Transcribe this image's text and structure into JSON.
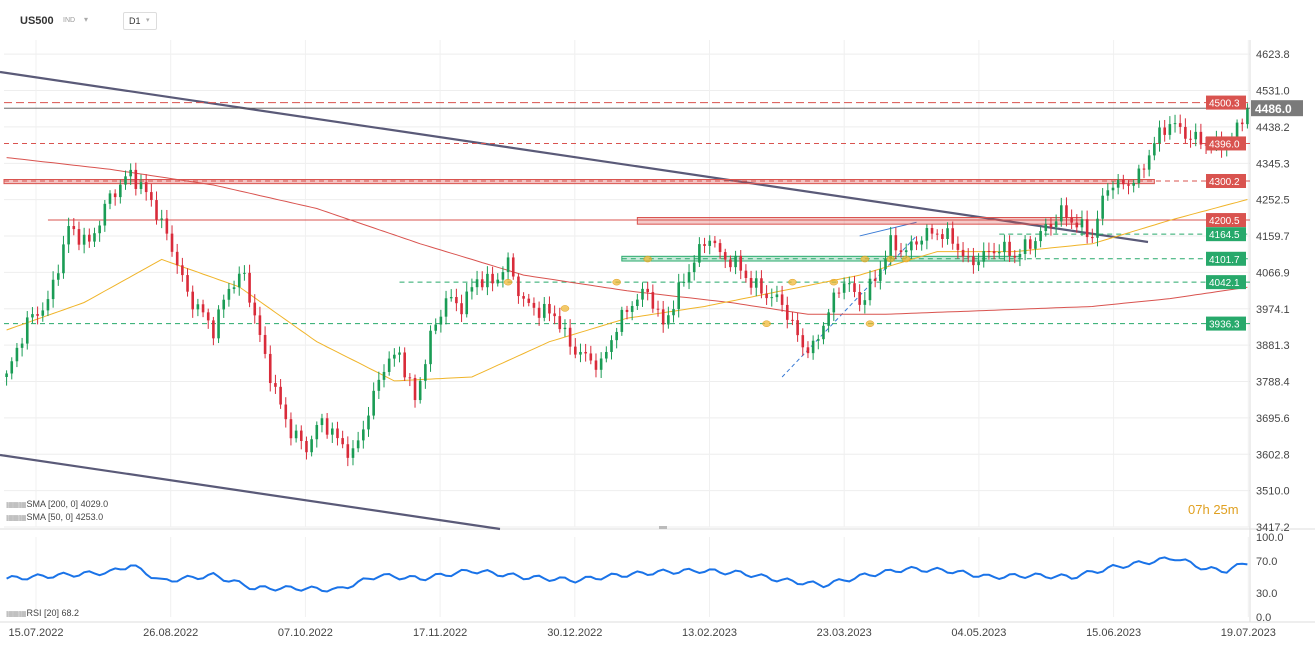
{
  "header": {
    "symbol": "US500",
    "instrument_type": "IND",
    "timeframe": "D1",
    "caret": "▾"
  },
  "countdown": {
    "hours": "07h",
    "minutes": "25m"
  },
  "indicators": {
    "sma200": {
      "label": "SMA [200, 0]",
      "value": "4029.0",
      "color": "#d9534f"
    },
    "sma50": {
      "label": "SMA [50, 0]",
      "value": "4253.0",
      "color": "#f0b429"
    },
    "rsi": {
      "label": "RSI [20]",
      "value": "68.2",
      "color": "#1a73e8"
    }
  },
  "colors": {
    "bull": "#1a9c55",
    "bear": "#d92b3a",
    "resistance": "#d9534f",
    "support": "#27a96b",
    "trendline": "#5a5a78"
  },
  "current_price": {
    "value": "4486.0",
    "color": "#7a7a7a"
  },
  "chart_data": {
    "type": "candlestick",
    "ylim": [
      3417.2,
      4660
    ],
    "y_ticks": [
      "4623.8",
      "4531.0",
      "4438.2",
      "4345.3",
      "4252.5",
      "4159.7",
      "4066.9",
      "3974.1",
      "3881.3",
      "3788.4",
      "3695.6",
      "3602.8",
      "3510.0",
      "3417.2"
    ],
    "x_ticks": [
      "15.07.2022",
      "26.08.2022",
      "07.10.2022",
      "17.11.2022",
      "30.12.2022",
      "13.02.2023",
      "23.03.2023",
      "04.05.2023",
      "15.06.2023",
      "19.07.2023"
    ],
    "levels": [
      {
        "label": "4500.3",
        "value": 4500.3,
        "kind": "resistance"
      },
      {
        "label": "4396.0",
        "value": 4396.0,
        "kind": "resistance"
      },
      {
        "label": "4300.2",
        "value": 4300.2,
        "kind": "resistance"
      },
      {
        "label": "4200.5",
        "value": 4200.5,
        "kind": "resistance"
      },
      {
        "label": "4164.5",
        "value": 4164.5,
        "kind": "support"
      },
      {
        "label": "4101.7",
        "value": 4101.7,
        "kind": "support"
      },
      {
        "label": "4042.1",
        "value": 4042.1,
        "kind": "support"
      },
      {
        "label": "3936.3",
        "value": 3936.3,
        "kind": "support"
      }
    ],
    "price_path": [
      [
        0,
        3800
      ],
      [
        4,
        3940
      ],
      [
        8,
        3990
      ],
      [
        12,
        4180
      ],
      [
        16,
        4140
      ],
      [
        20,
        4260
      ],
      [
        24,
        4320
      ],
      [
        28,
        4250
      ],
      [
        32,
        4130
      ],
      [
        35,
        4010
      ],
      [
        38,
        3960
      ],
      [
        40,
        3920
      ],
      [
        43,
        4030
      ],
      [
        46,
        4060
      ],
      [
        49,
        3900
      ],
      [
        52,
        3760
      ],
      [
        55,
        3660
      ],
      [
        58,
        3620
      ],
      [
        61,
        3690
      ],
      [
        64,
        3640
      ],
      [
        67,
        3600
      ],
      [
        70,
        3710
      ],
      [
        73,
        3830
      ],
      [
        76,
        3860
      ],
      [
        79,
        3740
      ],
      [
        82,
        3900
      ],
      [
        85,
        4000
      ],
      [
        88,
        3980
      ],
      [
        91,
        4050
      ],
      [
        94,
        4040
      ],
      [
        97,
        4090
      ],
      [
        100,
        3990
      ],
      [
        103,
        3970
      ],
      [
        106,
        3960
      ],
      [
        109,
        3880
      ],
      [
        112,
        3850
      ],
      [
        115,
        3830
      ],
      [
        118,
        3930
      ],
      [
        121,
        3990
      ],
      [
        124,
        4020
      ],
      [
        127,
        3930
      ],
      [
        130,
        4020
      ],
      [
        133,
        4100
      ],
      [
        136,
        4160
      ],
      [
        138,
        4110
      ],
      [
        141,
        4090
      ],
      [
        144,
        4040
      ],
      [
        147,
        4010
      ],
      [
        150,
        3990
      ],
      [
        152,
        3930
      ],
      [
        154,
        3880
      ],
      [
        156,
        3870
      ],
      [
        159,
        3970
      ],
      [
        162,
        4050
      ],
      [
        165,
        3990
      ],
      [
        168,
        4050
      ],
      [
        171,
        4140
      ],
      [
        174,
        4120
      ],
      [
        177,
        4160
      ],
      [
        180,
        4170
      ],
      [
        183,
        4150
      ],
      [
        186,
        4090
      ],
      [
        189,
        4110
      ],
      [
        192,
        4130
      ],
      [
        195,
        4110
      ],
      [
        198,
        4140
      ],
      [
        201,
        4180
      ],
      [
        204,
        4220
      ],
      [
        207,
        4190
      ],
      [
        210,
        4160
      ],
      [
        213,
        4290
      ],
      [
        216,
        4290
      ],
      [
        219,
        4310
      ],
      [
        222,
        4400
      ],
      [
        225,
        4450
      ],
      [
        228,
        4420
      ],
      [
        231,
        4400
      ],
      [
        234,
        4390
      ],
      [
        237,
        4410
      ],
      [
        240,
        4486
      ]
    ],
    "sma200": [
      [
        0,
        4360
      ],
      [
        20,
        4330
      ],
      [
        40,
        4290
      ],
      [
        60,
        4230
      ],
      [
        80,
        4140
      ],
      [
        100,
        4060
      ],
      [
        120,
        4020
      ],
      [
        140,
        3990
      ],
      [
        155,
        3960
      ],
      [
        170,
        3960
      ],
      [
        190,
        3970
      ],
      [
        210,
        3980
      ],
      [
        225,
        4000
      ],
      [
        240,
        4029
      ]
    ],
    "sma50": [
      [
        0,
        3920
      ],
      [
        15,
        3990
      ],
      [
        30,
        4100
      ],
      [
        45,
        4030
      ],
      [
        60,
        3890
      ],
      [
        75,
        3790
      ],
      [
        90,
        3800
      ],
      [
        105,
        3890
      ],
      [
        120,
        3950
      ],
      [
        135,
        3980
      ],
      [
        150,
        4020
      ],
      [
        165,
        4060
      ],
      [
        180,
        4120
      ],
      [
        195,
        4120
      ],
      [
        210,
        4140
      ],
      [
        225,
        4200
      ],
      [
        240,
        4253
      ]
    ],
    "rsi": {
      "ylim": [
        0,
        100
      ],
      "y_ticks": [
        "100.0",
        "70.0",
        "30.0",
        "0.0"
      ],
      "values": [
        [
          0,
          48
        ],
        [
          10,
          52
        ],
        [
          20,
          56
        ],
        [
          24,
          65
        ],
        [
          30,
          45
        ],
        [
          40,
          52
        ],
        [
          48,
          36
        ],
        [
          56,
          36
        ],
        [
          64,
          34
        ],
        [
          72,
          52
        ],
        [
          80,
          48
        ],
        [
          90,
          58
        ],
        [
          100,
          50
        ],
        [
          110,
          46
        ],
        [
          118,
          52
        ],
        [
          126,
          56
        ],
        [
          134,
          58
        ],
        [
          142,
          55
        ],
        [
          150,
          46
        ],
        [
          158,
          40
        ],
        [
          166,
          52
        ],
        [
          174,
          60
        ],
        [
          182,
          58
        ],
        [
          190,
          50
        ],
        [
          198,
          52
        ],
        [
          206,
          50
        ],
        [
          214,
          62
        ],
        [
          222,
          70
        ],
        [
          226,
          74
        ],
        [
          232,
          60
        ],
        [
          236,
          58
        ],
        [
          240,
          68.2
        ]
      ]
    }
  }
}
